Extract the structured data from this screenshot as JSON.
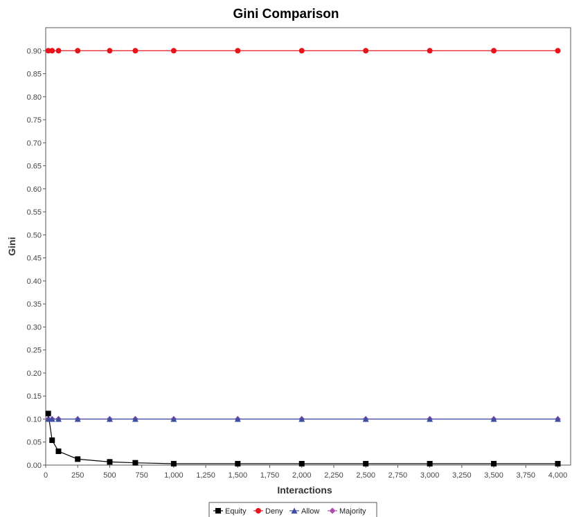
{
  "chart_data": {
    "type": "line",
    "title": "Gini Comparison",
    "xlabel": "Interactions",
    "ylabel": "Gini",
    "xlim": [
      0,
      4100
    ],
    "ylim": [
      0,
      0.95
    ],
    "x_ticks": [
      0,
      250,
      500,
      750,
      1000,
      1250,
      1500,
      1750,
      2000,
      2250,
      2500,
      2750,
      3000,
      3250,
      3500,
      3750,
      4000
    ],
    "x_tick_labels": [
      "0",
      "250",
      "500",
      "750",
      "1,000",
      "1,250",
      "1,500",
      "1,750",
      "2,000",
      "2,250",
      "2,500",
      "2,750",
      "3,000",
      "3,250",
      "3,500",
      "3,750",
      "4,000"
    ],
    "y_ticks": [
      0,
      0.05,
      0.1,
      0.15,
      0.2,
      0.25,
      0.3,
      0.35,
      0.4,
      0.45,
      0.5,
      0.55,
      0.6,
      0.65,
      0.7,
      0.75,
      0.8,
      0.85,
      0.9
    ],
    "y_tick_labels": [
      "0.00",
      "0.05",
      "0.10",
      "0.15",
      "0.20",
      "0.25",
      "0.30",
      "0.35",
      "0.40",
      "0.45",
      "0.50",
      "0.55",
      "0.60",
      "0.65",
      "0.70",
      "0.75",
      "0.80",
      "0.85",
      "0.90"
    ],
    "grid": false,
    "legend_position": "bottom",
    "x": [
      20,
      50,
      100,
      250,
      500,
      700,
      1000,
      1500,
      2000,
      2500,
      3000,
      3500,
      4000
    ],
    "series": [
      {
        "name": "Equity",
        "color": "#000000",
        "marker": "square",
        "values": [
          0.112,
          0.054,
          0.03,
          0.013,
          0.007,
          0.005,
          0.003,
          0.003,
          0.003,
          0.003,
          0.003,
          0.003,
          0.003
        ]
      },
      {
        "name": "Deny",
        "color": "#e8141b",
        "marker": "circle",
        "values": [
          0.9,
          0.9,
          0.9,
          0.9,
          0.9,
          0.9,
          0.9,
          0.9,
          0.9,
          0.9,
          0.9,
          0.9,
          0.9
        ]
      },
      {
        "name": "Allow",
        "color": "#3c4fa0",
        "marker": "triangle",
        "values": [
          0.1,
          0.1,
          0.1,
          0.1,
          0.1,
          0.1,
          0.1,
          0.1,
          0.1,
          0.1,
          0.1,
          0.1,
          0.1
        ]
      },
      {
        "name": "Majority",
        "color": "#b04fb0",
        "marker": "diamond",
        "values": [
          0.1,
          0.1,
          0.1,
          0.1,
          0.1,
          0.1,
          0.1,
          0.1,
          0.1,
          0.1,
          0.1,
          0.1,
          0.1
        ]
      }
    ]
  }
}
